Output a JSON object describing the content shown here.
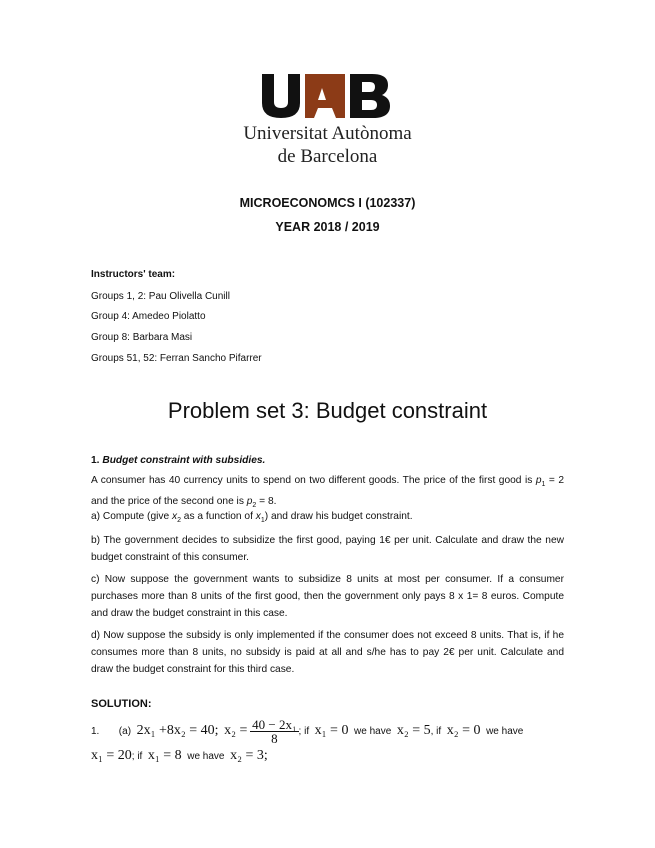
{
  "logo": {
    "letters": "UAB",
    "line1": "Universitat Autònoma",
    "line2": "de Barcelona",
    "colors": {
      "black": "#111111",
      "brown": "#8c3b17"
    }
  },
  "course": {
    "title": "MICROECONOMCS I (102337)",
    "year": "YEAR 2018 / 2019"
  },
  "instructors": {
    "heading": "Instructors' team:",
    "lines": [
      "Groups 1, 2: Pau Olivella Cunill",
      "Group 4: Amedeo Piolatto",
      "Group 8: Barbara Masi",
      "Groups 51, 52: Ferran Sancho Pifarrer"
    ]
  },
  "problem_set_title": "Problem set 3: Budget constraint",
  "exercise1": {
    "number": "1.",
    "title": "Budget constraint with subsidies.",
    "intro_a": "A consumer has 40 currency units to spend on two different goods. The price of the first good is ",
    "intro_b": " = 2 and the price of the second one is ",
    "intro_c": " = 8.",
    "p": "p",
    "a_1": "a) Compute (give ",
    "a_2": " as a function of ",
    "a_3": ") and draw his budget constraint.",
    "x": "x",
    "b": "b) The government decides to subsidize the first good, paying 1€ per unit. Calculate and draw the new budget constraint of this consumer.",
    "c": "c) Now suppose the government wants to subsidize 8 units at most per consumer. If a consumer purchases more than 8 units of the first good, then the government only pays 8 x 1= 8 euros. Compute and draw the budget constraint in this case.",
    "d": "d) Now suppose the subsidy is only implemented if the consumer does not exceed 8 units. That is, if he consumes more than 8 units, no subsidy is paid at all and s/he has to pay 2€ per unit. Calculate and draw the budget constraint for this third case."
  },
  "solution": {
    "heading": "SOLUTION:",
    "num": "1.",
    "part": "(a)",
    "eq1": "2x₁ +8x₂ = 40;",
    "eq2_lhs": "x₂ =",
    "eq2_num": "40 − 2x₁",
    "eq2_den": "8",
    "if1": "; if",
    "c1": "x₁ = 0",
    "we_have": "we have",
    "r1": "x₂ = 5",
    "if2": ", if",
    "c2": "x₂ = 0",
    "r2": "x₁ = 20",
    "if3": "; if",
    "c3": "x₁ = 8",
    "r3": "x₂ = 3;"
  }
}
